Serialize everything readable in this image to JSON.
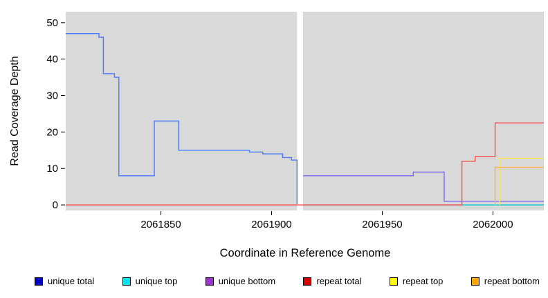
{
  "chart_data": {
    "type": "line",
    "title": "",
    "xlabel": "Coordinate in Reference Genome",
    "ylabel": "Read Coverage Depth",
    "xlim": [
      2061807,
      2062023
    ],
    "ylim": [
      -1.5,
      53
    ],
    "xticks": [
      2061850,
      2061900,
      2061950,
      2062000
    ],
    "yticks": [
      0,
      10,
      20,
      30,
      40,
      50
    ],
    "plot_bg": "#d9d9d9",
    "gap_x": [
      2061911.5,
      2061914.2
    ],
    "legend_position": "bottom",
    "grid": false,
    "series": [
      {
        "name": "unique total",
        "legend_color": "#0000cd",
        "line_color": "#4778ff",
        "points": [
          [
            2061807,
            47
          ],
          [
            2061822,
            47
          ],
          [
            2061822,
            46
          ],
          [
            2061824,
            46
          ],
          [
            2061824,
            36
          ],
          [
            2061829,
            36
          ],
          [
            2061829,
            35
          ],
          [
            2061831,
            35
          ],
          [
            2061831,
            8
          ],
          [
            2061847,
            8
          ],
          [
            2061847,
            23
          ],
          [
            2061858,
            23
          ],
          [
            2061858,
            15
          ],
          [
            2061890,
            15
          ],
          [
            2061890,
            14.5
          ],
          [
            2061896,
            14.5
          ],
          [
            2061896,
            14
          ],
          [
            2061905,
            14
          ],
          [
            2061905,
            13
          ],
          [
            2061909,
            13
          ],
          [
            2061909,
            12.3
          ],
          [
            2061911.5,
            12.3
          ],
          [
            2061911.5,
            0.2
          ]
        ]
      },
      {
        "name": "unique top",
        "legend_color": "#00e5ee",
        "line_color": "#00ced1",
        "points": [
          [
            2061914.2,
            0
          ],
          [
            2062023,
            0
          ]
        ]
      },
      {
        "name": "unique bottom",
        "legend_color": "#9932cc",
        "line_color": "#7b68ee",
        "points": [
          [
            2061914.2,
            8
          ],
          [
            2061964,
            8
          ],
          [
            2061964,
            9
          ],
          [
            2061978,
            9
          ],
          [
            2061978,
            1
          ],
          [
            2062023,
            1
          ]
        ]
      },
      {
        "name": "repeat total",
        "legend_color": "#dd0000",
        "line_color": "#ff4d4d",
        "points": [
          [
            2061807,
            0
          ],
          [
            2061986,
            0
          ],
          [
            2061986,
            12
          ],
          [
            2061992,
            12
          ],
          [
            2061992,
            13.3
          ],
          [
            2062001,
            13.3
          ],
          [
            2062001,
            22.5
          ],
          [
            2062023,
            22.5
          ]
        ]
      },
      {
        "name": "repeat top",
        "legend_color": "#ffff00",
        "line_color": "#ffe34d",
        "points": [
          [
            2062003,
            0
          ],
          [
            2062003,
            12.8
          ],
          [
            2062023,
            12.8
          ]
        ]
      },
      {
        "name": "repeat bottom",
        "legend_color": "#ffa500",
        "line_color": "#ffb347",
        "points": [
          [
            2062001,
            0
          ],
          [
            2062001,
            10.3
          ],
          [
            2062023,
            10.3
          ]
        ]
      }
    ]
  }
}
